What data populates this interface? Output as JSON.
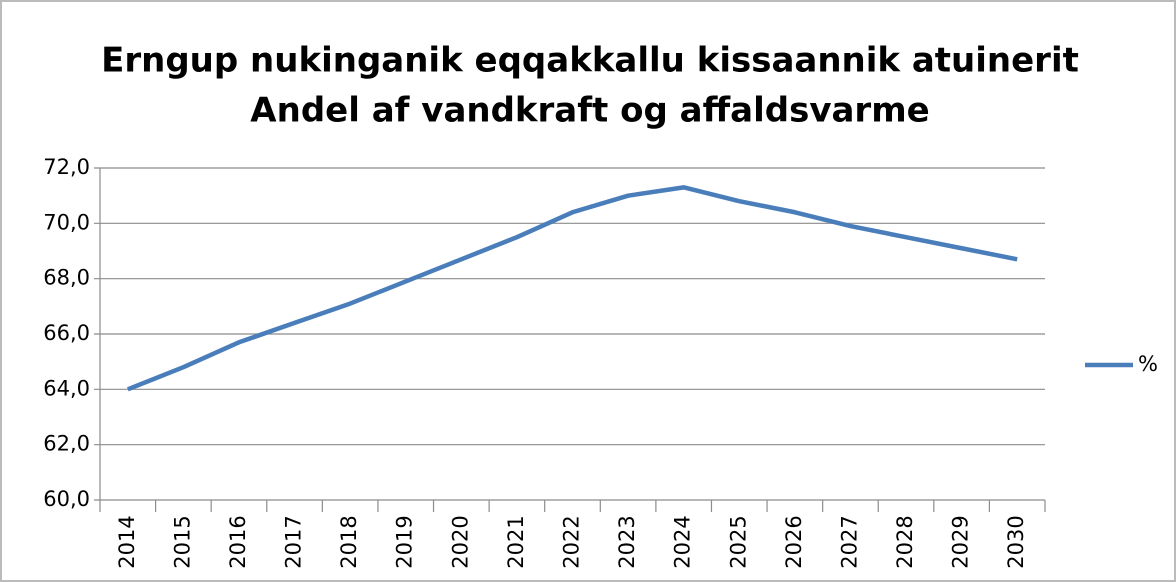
{
  "chart_data": {
    "type": "line",
    "title": [
      "Erngup nukinganik eqqakkallu kissaannik atuinerit",
      "Andel af vandkraft og affaldsvarme"
    ],
    "categories": [
      "2014",
      "2015",
      "2016",
      "2017",
      "2018",
      "2019",
      "2020",
      "2021",
      "2022",
      "2023",
      "2024",
      "2025",
      "2026",
      "2027",
      "2028",
      "2029",
      "2030"
    ],
    "series": [
      {
        "name": "%",
        "color": "#4a7ebb",
        "values": [
          64.0,
          64.8,
          65.7,
          66.4,
          67.1,
          67.9,
          68.7,
          69.5,
          70.4,
          71.0,
          71.3,
          70.8,
          70.4,
          69.9,
          69.5,
          69.1,
          68.7
        ]
      }
    ],
    "ylim": [
      60,
      72
    ],
    "yticks": [
      {
        "value": 60,
        "label": "60,0"
      },
      {
        "value": 62,
        "label": "62,0"
      },
      {
        "value": 64,
        "label": "64,0"
      },
      {
        "value": 66,
        "label": "66,0"
      },
      {
        "value": 68,
        "label": "68,0"
      },
      {
        "value": 70,
        "label": "70,0"
      },
      {
        "value": 72,
        "label": "72,0"
      }
    ],
    "grid": true,
    "legend": "right"
  }
}
